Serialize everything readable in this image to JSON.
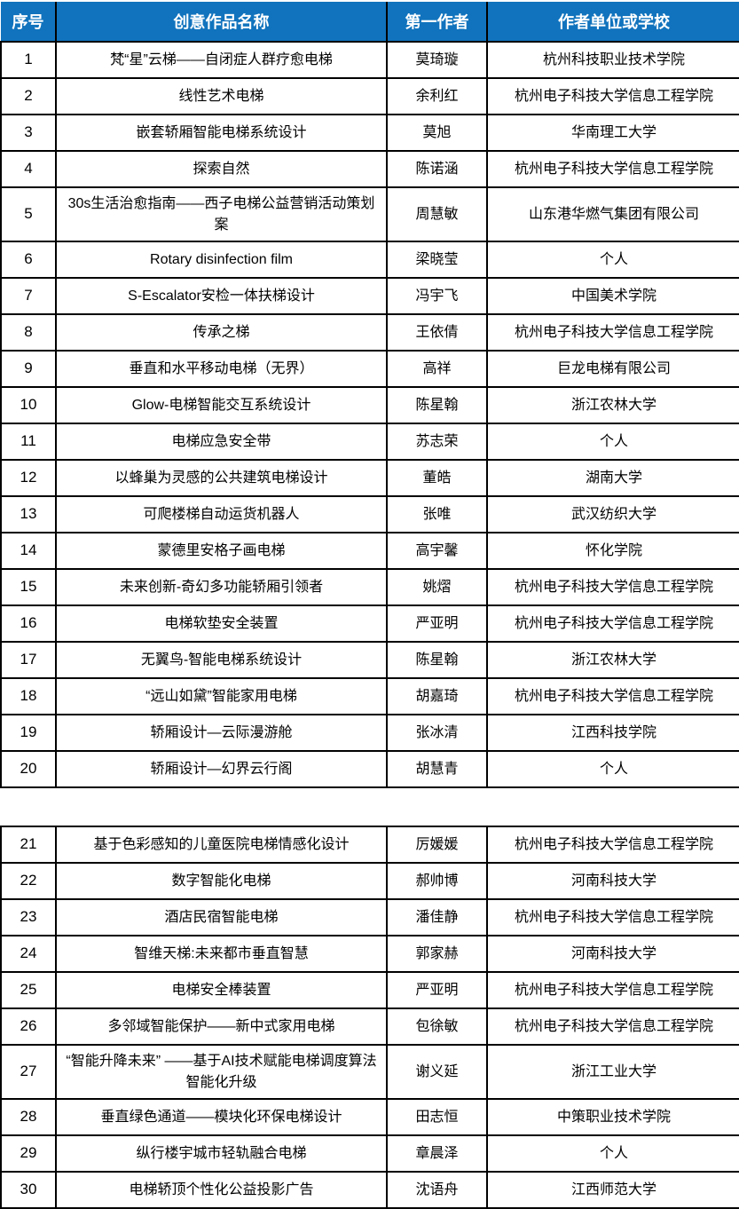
{
  "table": {
    "header_bg": "#1173BD",
    "header_text_color": "#FFFFFF",
    "border_color": "#000000",
    "columns": [
      "序号",
      "创意作品名称",
      "第一作者",
      "作者单位或学校"
    ],
    "rows": [
      {
        "no": "1",
        "title": "梵“星”云梯——自闭症人群疗愈电梯",
        "author": "莫琦璇",
        "org": "杭州科技职业技术学院"
      },
      {
        "no": "2",
        "title": "线性艺术电梯",
        "author": "余利红",
        "org": "杭州电子科技大学信息工程学院"
      },
      {
        "no": "3",
        "title": "嵌套轿厢智能电梯系统设计",
        "author": "莫旭",
        "org": "华南理工大学"
      },
      {
        "no": "4",
        "title": "探索自然",
        "author": "陈诺涵",
        "org": "杭州电子科技大学信息工程学院"
      },
      {
        "no": "5",
        "title": "30s生活治愈指南——西子电梯公益营销活动策划案",
        "author": "周慧敏",
        "org": "山东港华燃气集团有限公司",
        "tall": true
      },
      {
        "no": "6",
        "title": "Rotary disinfection film",
        "author": "梁晓莹",
        "org": "个人"
      },
      {
        "no": "7",
        "title": "S-Escalator安检一体扶梯设计",
        "author": "冯宇飞",
        "org": "中国美术学院"
      },
      {
        "no": "8",
        "title": "传承之梯",
        "author": "王依倩",
        "org": "杭州电子科技大学信息工程学院"
      },
      {
        "no": "9",
        "title": "垂直和水平移动电梯（无界）",
        "author": "高祥",
        "org": "巨龙电梯有限公司"
      },
      {
        "no": "10",
        "title": "Glow-电梯智能交互系统设计",
        "author": "陈星翰",
        "org": "浙江农林大学"
      },
      {
        "no": "11",
        "title": "电梯应急安全带",
        "author": "苏志荣",
        "org": "个人"
      },
      {
        "no": "12",
        "title": "以蜂巢为灵感的公共建筑电梯设计",
        "author": "董皓",
        "org": "湖南大学"
      },
      {
        "no": "13",
        "title": "可爬楼梯自动运货机器人",
        "author": "张唯",
        "org": "武汉纺织大学"
      },
      {
        "no": "14",
        "title": "蒙德里安格子画电梯",
        "author": "高宇馨",
        "org": "怀化学院"
      },
      {
        "no": "15",
        "title": "未来创新-奇幻多功能轿厢引领者",
        "author": "姚熠",
        "org": "杭州电子科技大学信息工程学院"
      },
      {
        "no": "16",
        "title": "电梯软垫安全装置",
        "author": "严亚明",
        "org": "杭州电子科技大学信息工程学院"
      },
      {
        "no": "17",
        "title": "无翼鸟-智能电梯系统设计",
        "author": "陈星翰",
        "org": "浙江农林大学"
      },
      {
        "no": "18",
        "title": "“远山如黛”智能家用电梯",
        "author": "胡嘉琦",
        "org": "杭州电子科技大学信息工程学院"
      },
      {
        "no": "19",
        "title": "轿厢设计—云际漫游舱",
        "author": "张冰清",
        "org": "江西科技学院"
      },
      {
        "no": "20",
        "title": "轿厢设计—幻界云行阁",
        "author": "胡慧青",
        "org": "个人"
      },
      {
        "blank": true
      },
      {
        "no": "21",
        "title": "基于色彩感知的儿童医院电梯情感化设计",
        "author": "厉媛媛",
        "org": "杭州电子科技大学信息工程学院"
      },
      {
        "no": "22",
        "title": "数字智能化电梯",
        "author": "郝帅博",
        "org": "河南科技大学"
      },
      {
        "no": "23",
        "title": "酒店民宿智能电梯",
        "author": "潘佳静",
        "org": "杭州电子科技大学信息工程学院"
      },
      {
        "no": "24",
        "title": "智维天梯:未来都市垂直智慧",
        "author": "郭家赫",
        "org": "河南科技大学"
      },
      {
        "no": "25",
        "title": "电梯安全棒装置",
        "author": "严亚明",
        "org": "杭州电子科技大学信息工程学院"
      },
      {
        "no": "26",
        "title": "多邻域智能保护——新中式家用电梯",
        "author": "包徐敏",
        "org": "杭州电子科技大学信息工程学院"
      },
      {
        "no": "27",
        "title": "“智能升降未来” ——基于AI技术赋能电梯调度算法智能化升级",
        "author": "谢义延",
        "org": "浙江工业大学",
        "tall": true
      },
      {
        "no": "28",
        "title": "垂直绿色通道——模块化环保电梯设计",
        "author": "田志恒",
        "org": "中策职业技术学院"
      },
      {
        "no": "29",
        "title": "纵行楼宇城市轻轨融合电梯",
        "author": "章晨泽",
        "org": "个人"
      },
      {
        "no": "30",
        "title": "电梯轿顶个性化公益投影广告",
        "author": "沈语舟",
        "org": "江西师范大学"
      }
    ]
  }
}
